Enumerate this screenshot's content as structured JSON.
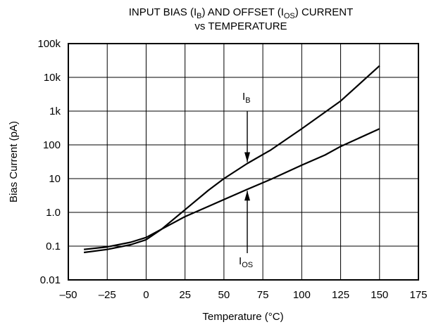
{
  "chart_data": {
    "type": "line",
    "title": {
      "line1": {
        "a": "INPUT BIAS (I",
        "a_sub": "B",
        "b": ") AND OFFSET (I",
        "b_sub": "OS",
        "c": ") CURRENT"
      },
      "line2": "vs TEMPERATURE"
    },
    "xlabel": "Temperature (°C)",
    "ylabel": "Bias Current (pA)",
    "xlim": [
      -50,
      175
    ],
    "ylim": [
      0.01,
      100000
    ],
    "yscale": "log",
    "grid": true,
    "xticks": [
      -50,
      -25,
      0,
      25,
      50,
      75,
      100,
      125,
      150,
      175
    ],
    "xtick_labels": [
      "–50",
      "–25",
      "0",
      "25",
      "50",
      "75",
      "100",
      "125",
      "150",
      "175"
    ],
    "yticks": [
      0.01,
      0.1,
      1,
      10,
      100,
      1000,
      10000,
      100000
    ],
    "ytick_labels": [
      "0.01",
      "0.1",
      "1.0",
      "10",
      "100",
      "1k",
      "10k",
      "100k"
    ],
    "series": [
      {
        "name": "IB",
        "x": [
          -40,
          -25,
          -10,
          0,
          10,
          25,
          40,
          50,
          65,
          80,
          100,
          125,
          150
        ],
        "y": [
          0.065,
          0.08,
          0.11,
          0.155,
          0.32,
          1.2,
          4.5,
          10,
          28,
          70,
          300,
          2000,
          22000
        ]
      },
      {
        "name": "IOS",
        "x": [
          -40,
          -25,
          -10,
          0,
          10,
          25,
          40,
          50,
          65,
          80,
          100,
          115,
          125,
          150
        ],
        "y": [
          0.08,
          0.095,
          0.13,
          0.18,
          0.32,
          0.75,
          1.5,
          2.4,
          4.8,
          9.5,
          25,
          50,
          90,
          300
        ]
      }
    ],
    "annotations": [
      {
        "series": "IB",
        "text": "I",
        "sub": "B",
        "arrow_to": {
          "x": 65,
          "y": 28
        }
      },
      {
        "series": "IOS",
        "text": "I",
        "sub": "OS",
        "arrow_to": {
          "x": 65,
          "y": 4.8
        }
      }
    ]
  }
}
